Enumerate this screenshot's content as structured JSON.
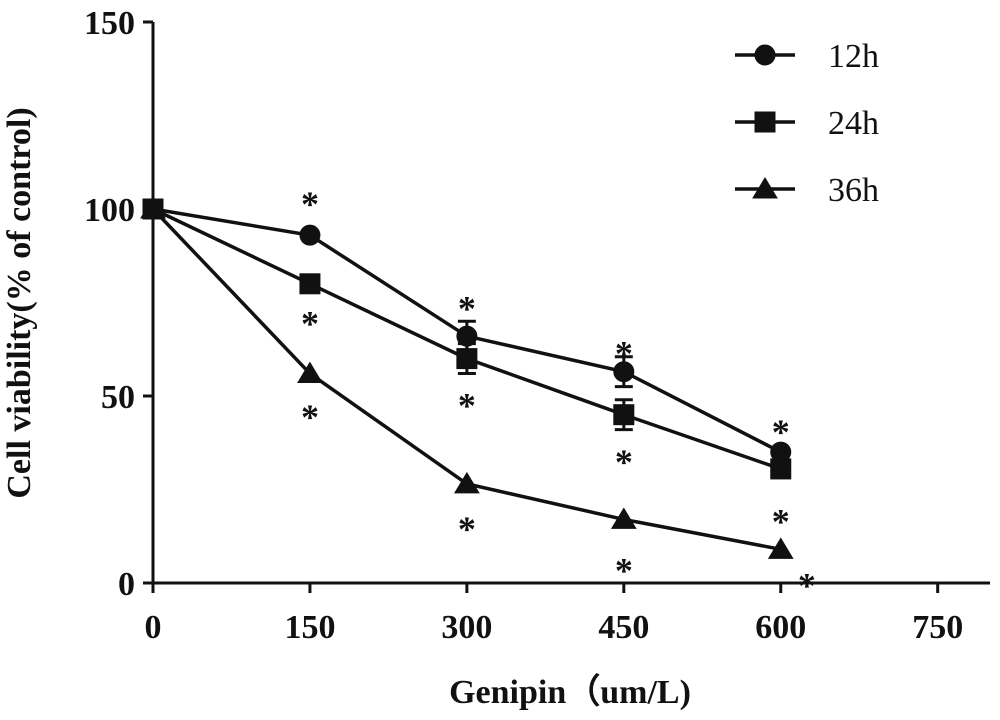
{
  "chart_data": {
    "type": "line",
    "title": "",
    "xlabel": "Genipin（um/L)",
    "ylabel": "Cell viability(% of control)",
    "x": [
      0,
      150,
      300,
      450,
      600
    ],
    "xlim": [
      0,
      800
    ],
    "ylim": [
      0,
      150
    ],
    "x_ticks": [
      "0",
      "150",
      "300",
      "450",
      "600",
      "750"
    ],
    "y_ticks": [
      "0",
      "50",
      "100",
      "150"
    ],
    "grid": false,
    "legend_position": "top-right",
    "series": [
      {
        "name": "12h",
        "marker": "circle",
        "values": [
          100,
          93,
          66,
          56.5,
          35
        ],
        "errors": [
          0,
          1,
          4,
          4,
          1
        ]
      },
      {
        "name": "24h",
        "marker": "square",
        "values": [
          100,
          80,
          60,
          45,
          30.5
        ],
        "errors": [
          0,
          1,
          4,
          4,
          1
        ]
      },
      {
        "name": "36h",
        "marker": "triangle",
        "values": [
          100,
          56,
          26.5,
          17,
          9
        ],
        "errors": [
          0,
          1,
          1,
          1,
          1
        ]
      }
    ],
    "annotations": [
      {
        "text": "*",
        "x": 150,
        "y": 103
      },
      {
        "text": "*",
        "x": 150,
        "y": 71
      },
      {
        "text": "*",
        "x": 150,
        "y": 46
      },
      {
        "text": "*",
        "x": 300,
        "y": 75
      },
      {
        "text": "*",
        "x": 300,
        "y": 49
      },
      {
        "text": "*",
        "x": 450,
        "y": 63
      },
      {
        "text": "*",
        "x": 450,
        "y": 34
      },
      {
        "text": "*",
        "x": 600,
        "y": 42
      },
      {
        "text": "*",
        "x": 600,
        "y": 18
      },
      {
        "text": "*",
        "x": 625,
        "y": 1
      },
      {
        "text": "*",
        "x": 300,
        "y": 16
      },
      {
        "text": "*",
        "x": 450,
        "y": 5
      }
    ]
  }
}
